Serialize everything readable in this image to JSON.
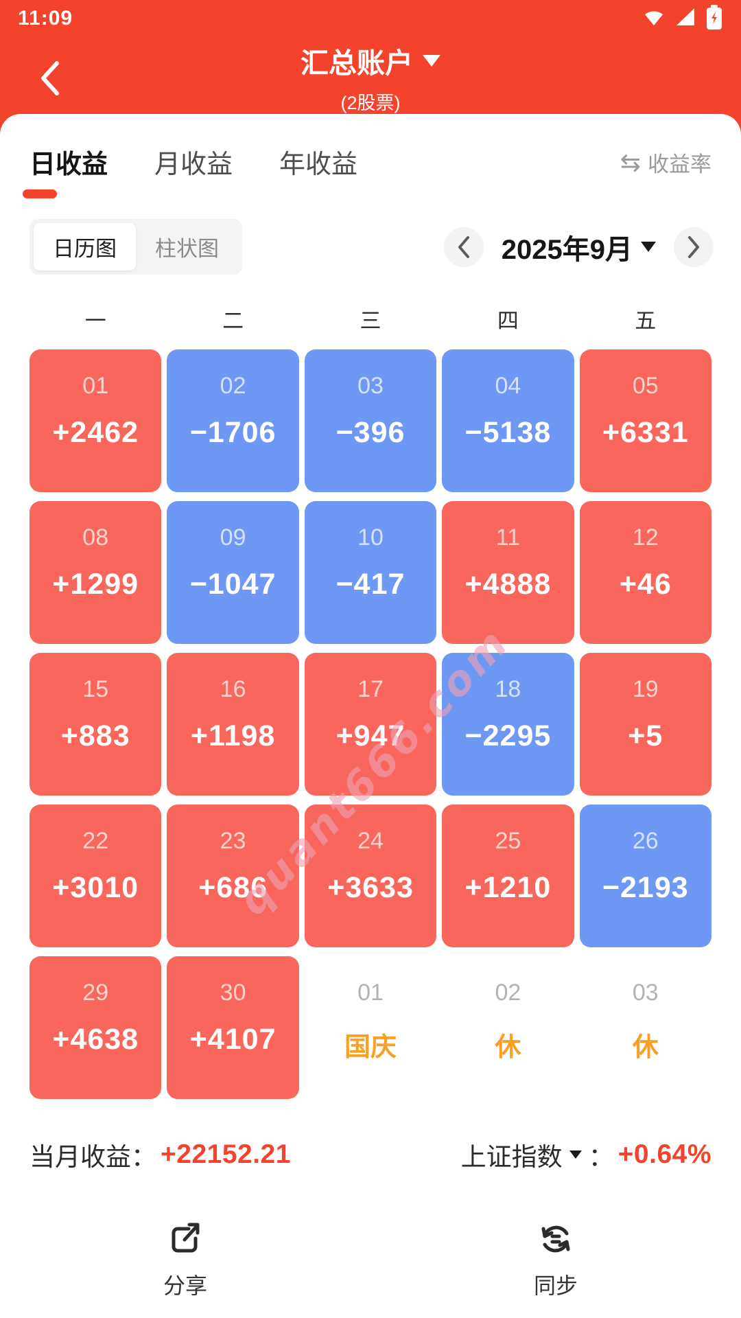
{
  "status_bar": {
    "time": "11:09",
    "icons": [
      "wifi-icon",
      "signal-icon",
      "battery-charging-icon"
    ]
  },
  "header": {
    "title": "汇总账户",
    "subtitle": "(2股票)"
  },
  "tabs": [
    {
      "label": "日收益",
      "active": true
    },
    {
      "label": "月收益",
      "active": false
    },
    {
      "label": "年收益",
      "active": false
    }
  ],
  "rate_toggle": {
    "icon": "swap-arrows-icon",
    "glyph": "⇆",
    "label": "收益率"
  },
  "view_toggle": {
    "options": [
      "日历图",
      "柱状图"
    ],
    "selected": "日历图"
  },
  "month_nav": {
    "label": "2025年9月"
  },
  "calendar": {
    "weekdays": [
      "一",
      "二",
      "三",
      "四",
      "五"
    ],
    "cells": [
      {
        "date": "01",
        "value": "+2462",
        "type": "profit"
      },
      {
        "date": "02",
        "value": "−1706",
        "type": "loss"
      },
      {
        "date": "03",
        "value": "−396",
        "type": "loss"
      },
      {
        "date": "04",
        "value": "−5138",
        "type": "loss"
      },
      {
        "date": "05",
        "value": "+6331",
        "type": "profit"
      },
      {
        "date": "08",
        "value": "+1299",
        "type": "profit"
      },
      {
        "date": "09",
        "value": "−1047",
        "type": "loss"
      },
      {
        "date": "10",
        "value": "−417",
        "type": "loss"
      },
      {
        "date": "11",
        "value": "+4888",
        "type": "profit"
      },
      {
        "date": "12",
        "value": "+46",
        "type": "profit"
      },
      {
        "date": "15",
        "value": "+883",
        "type": "profit"
      },
      {
        "date": "16",
        "value": "+1198",
        "type": "profit"
      },
      {
        "date": "17",
        "value": "+947",
        "type": "profit"
      },
      {
        "date": "18",
        "value": "−2295",
        "type": "loss"
      },
      {
        "date": "19",
        "value": "+5",
        "type": "profit"
      },
      {
        "date": "22",
        "value": "+3010",
        "type": "profit"
      },
      {
        "date": "23",
        "value": "+686",
        "type": "profit"
      },
      {
        "date": "24",
        "value": "+3633",
        "type": "profit"
      },
      {
        "date": "25",
        "value": "+1210",
        "type": "profit"
      },
      {
        "date": "26",
        "value": "−2193",
        "type": "loss"
      },
      {
        "date": "29",
        "value": "+4638",
        "type": "profit"
      },
      {
        "date": "30",
        "value": "+4107",
        "type": "profit"
      },
      {
        "date": "01",
        "value": "国庆",
        "type": "holiday"
      },
      {
        "date": "02",
        "value": "休",
        "type": "holiday"
      },
      {
        "date": "03",
        "value": "休",
        "type": "holiday"
      }
    ]
  },
  "summary": {
    "month_label": "当月收益：",
    "month_value": "+22152.21",
    "index_label": "上证指数",
    "index_colon": "：",
    "index_value": "+0.64%"
  },
  "footer": {
    "share_label": "分享",
    "sync_label": "同步"
  },
  "watermark": "quant666.com",
  "colors": {
    "header_red": "#F4432C",
    "profit_cell_red": "#F8665C",
    "loss_cell_blue": "#6D98F3",
    "holiday_orange": "#F7A022",
    "value_red": "#F4432C"
  }
}
